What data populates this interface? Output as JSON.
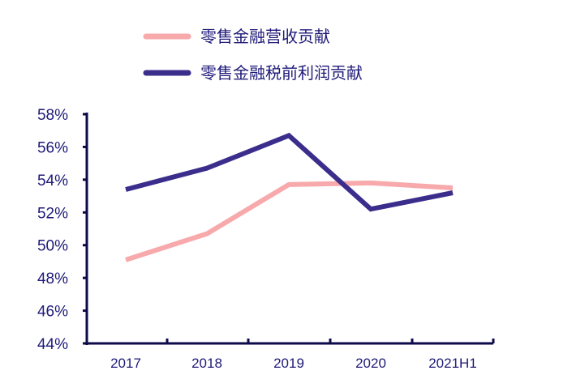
{
  "chart_data": {
    "type": "line",
    "categories": [
      "2017",
      "2018",
      "2019",
      "2020",
      "2021H1"
    ],
    "series": [
      {
        "name": "零售金融营收贡献",
        "values": [
          49.1,
          50.7,
          53.7,
          53.8,
          53.5
        ],
        "color": "#f7a9ab"
      },
      {
        "name": "零售金融税前利润贡献",
        "values": [
          53.4,
          54.7,
          56.7,
          52.2,
          53.2
        ],
        "color": "#3b2d8c"
      }
    ],
    "ylim": [
      44,
      58
    ],
    "y_ticks": [
      "44%",
      "46%",
      "48%",
      "50%",
      "52%",
      "54%",
      "56%",
      "58%"
    ],
    "y_tick_values": [
      44,
      46,
      48,
      50,
      52,
      54,
      56,
      58
    ],
    "grid": false,
    "legend_position": "top"
  },
  "colors": {
    "axis": "#0d0a4a",
    "text": "#1e1a78"
  }
}
